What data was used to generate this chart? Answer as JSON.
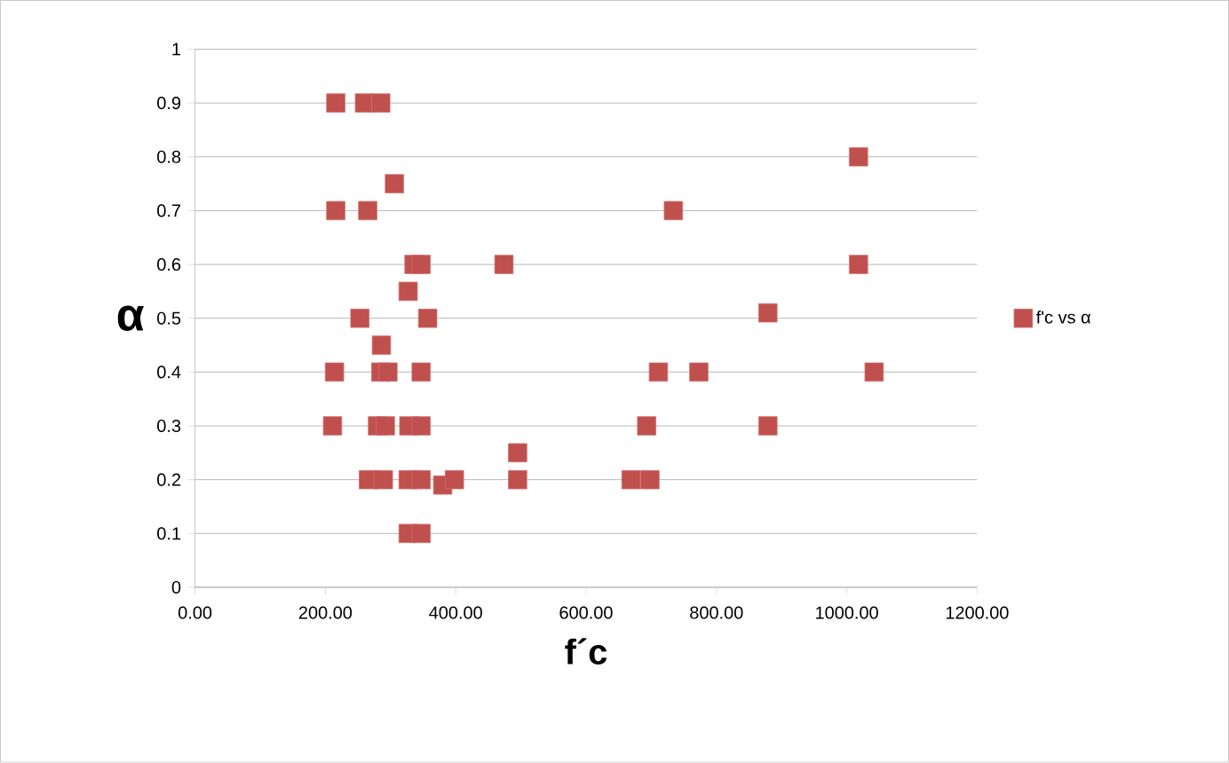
{
  "chart_data": {
    "type": "scatter",
    "xlabel": "f´c",
    "ylabel": "α",
    "x": [
      216,
      260,
      285,
      306,
      216,
      265,
      336,
      347,
      474,
      327,
      253,
      357,
      286,
      214,
      285,
      296,
      347,
      711,
      773,
      1042,
      211,
      280,
      292,
      328,
      347,
      693,
      879,
      495,
      266,
      289,
      327,
      347,
      380,
      398,
      495,
      669,
      698,
      327,
      347,
      1018,
      1018,
      879,
      734
    ],
    "series": [
      {
        "name": "f'c vs α",
        "color": "#c0504d",
        "values": [
          0.9,
          0.9,
          0.9,
          0.75,
          0.7,
          0.7,
          0.6,
          0.6,
          0.6,
          0.55,
          0.5,
          0.5,
          0.45,
          0.4,
          0.4,
          0.4,
          0.4,
          0.4,
          0.4,
          0.4,
          0.3,
          0.3,
          0.3,
          0.3,
          0.3,
          0.3,
          0.3,
          0.25,
          0.2,
          0.2,
          0.2,
          0.2,
          0.19,
          0.2,
          0.2,
          0.2,
          0.2,
          0.1,
          0.1,
          0.8,
          0.6,
          0.51,
          0.7
        ]
      }
    ],
    "xlim": [
      0,
      1200
    ],
    "xticks": [
      {
        "value": 0,
        "label": "0.00"
      },
      {
        "value": 200,
        "label": "200.00"
      },
      {
        "value": 400,
        "label": "400.00"
      },
      {
        "value": 600,
        "label": "600.00"
      },
      {
        "value": 800,
        "label": "800.00"
      },
      {
        "value": 1000,
        "label": "1000.00"
      },
      {
        "value": 1200,
        "label": "1200.00"
      }
    ],
    "ylim": [
      0,
      1
    ],
    "yticks": [
      0,
      0.1,
      0.2,
      0.3,
      0.4,
      0.5,
      0.6,
      0.7,
      0.8,
      0.9,
      1
    ],
    "grid": "y",
    "legend": "right",
    "marker": "square"
  }
}
